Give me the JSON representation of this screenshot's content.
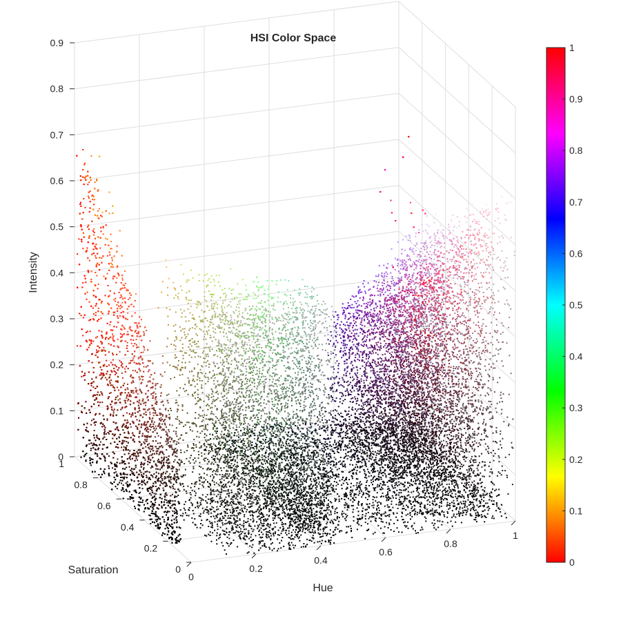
{
  "chart_data": {
    "type": "scatter",
    "title": "HSI Color Space",
    "xlabel": "Hue",
    "ylabel": "Saturation",
    "zlabel": "Intensity",
    "xlim": [
      0,
      1
    ],
    "ylim": [
      0,
      1
    ],
    "zlim": [
      0,
      0.9
    ],
    "xticks": [
      "0",
      "0.2",
      "0.4",
      "0.6",
      "0.8",
      "1"
    ],
    "yticks": [
      "0",
      "0.2",
      "0.4",
      "0.6",
      "0.8",
      "1"
    ],
    "zticks": [
      "0",
      "0.1",
      "0.2",
      "0.3",
      "0.4",
      "0.5",
      "0.6",
      "0.7",
      "0.8",
      "0.9"
    ],
    "grid": true,
    "colorbar": {
      "colormap": "hsv",
      "range": [
        0,
        1
      ],
      "ticks": [
        "0",
        "0.1",
        "0.2",
        "0.3",
        "0.4",
        "0.5",
        "0.6",
        "0.7",
        "0.8",
        "0.9",
        "1"
      ]
    },
    "clusters": [
      {
        "hue": 0.05,
        "intensity_range": [
          0.0,
          0.7
        ],
        "saturation_range": [
          0.1,
          1.0
        ]
      },
      {
        "hue": 0.3,
        "intensity_range": [
          0.0,
          0.5
        ],
        "saturation_range": [
          0.0,
          0.5
        ]
      },
      {
        "hue": 0.85,
        "intensity_range": [
          0.0,
          0.7
        ],
        "saturation_range": [
          0.0,
          0.8
        ]
      }
    ]
  }
}
